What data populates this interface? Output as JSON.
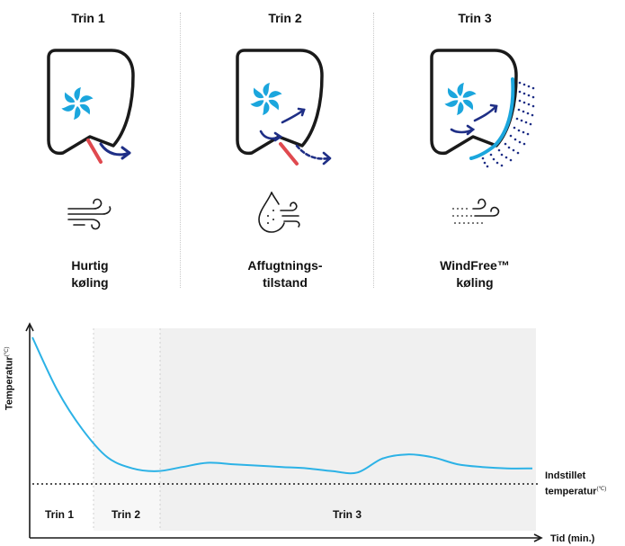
{
  "steps": [
    {
      "title": "Trin 1",
      "caption_line1": "Hurtig",
      "caption_line2": "køling",
      "mode_icon": "fast-wind-icon"
    },
    {
      "title": "Trin 2",
      "caption_line1": "Affugtnings-",
      "caption_line2": "tilstand",
      "mode_icon": "dehumidify-drop-icon"
    },
    {
      "title": "Trin 3",
      "caption_line1": "WindFree™",
      "caption_line2": "køling",
      "mode_icon": "windfree-breeze-icon"
    }
  ],
  "colors": {
    "unit_outline": "#1a1a1a",
    "fan": "#1ba6dd",
    "arrow": "#1f2f86",
    "vane_red": "#e0494f",
    "windfree_blue": "#1ba6dd",
    "curve": "#2cb2e6",
    "shade": "#f2f2f2",
    "text": "#111111"
  },
  "chart": {
    "ylabel": "Temperatur",
    "ylabel_unit": "(℃)",
    "xlabel": "Tid (min.)",
    "setpoint_line1": "Indstillet",
    "setpoint_line2": "temperatur",
    "setpoint_unit": "(℃)",
    "phases": [
      "Trin 1",
      "Trin 2",
      "Trin 3"
    ]
  },
  "chart_data": {
    "type": "line",
    "xlabel": "Tid (min.)",
    "ylabel": "Temperatur (℃)",
    "grid": false,
    "setpoint_line": "dotted",
    "x": [
      0,
      5,
      10,
      15,
      20,
      25,
      30,
      35,
      40,
      45,
      50,
      55,
      60,
      65,
      70,
      75,
      80,
      85,
      90,
      95,
      100
    ],
    "series": [
      {
        "values": [
          100,
          62,
          34,
          14,
          6,
          4,
          7,
          10,
          9,
          8,
          7,
          6,
          4,
          3,
          13,
          16,
          14,
          9,
          7,
          6,
          6
        ]
      }
    ],
    "setpoint": 0,
    "phase_bounds": [
      0,
      12,
      25,
      100
    ]
  }
}
